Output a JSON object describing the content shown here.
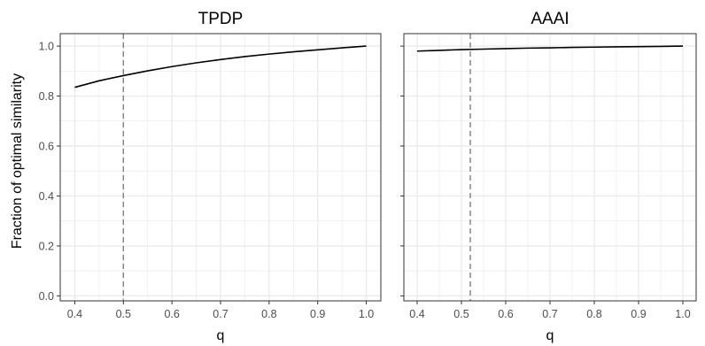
{
  "chart_data": {
    "type": "line",
    "ylabel": "Fraction of optimal similarity",
    "xlabel": "q",
    "ylim": [
      -0.02,
      1.05
    ],
    "xlim": [
      0.37,
      1.03
    ],
    "x_ticks": [
      "0.4",
      "0.5",
      "0.6",
      "0.7",
      "0.8",
      "0.9",
      "1.0"
    ],
    "y_ticks": [
      "0.0",
      "0.2",
      "0.4",
      "0.6",
      "0.8",
      "1.0"
    ],
    "grid": true,
    "panels": [
      {
        "title": "TPDP",
        "vline_x": 0.5,
        "x": [
          0.4,
          0.45,
          0.5,
          0.55,
          0.6,
          0.65,
          0.7,
          0.75,
          0.8,
          0.85,
          0.9,
          0.95,
          1.0
        ],
        "y": [
          0.835,
          0.861,
          0.882,
          0.901,
          0.918,
          0.933,
          0.946,
          0.958,
          0.968,
          0.977,
          0.985,
          0.993,
          1.0
        ]
      },
      {
        "title": "AAAI",
        "vline_x": 0.52,
        "x": [
          0.4,
          0.45,
          0.5,
          0.55,
          0.6,
          0.65,
          0.7,
          0.75,
          0.8,
          0.85,
          0.9,
          0.95,
          1.0
        ],
        "y": [
          0.98,
          0.983,
          0.986,
          0.988,
          0.99,
          0.992,
          0.993,
          0.995,
          0.996,
          0.997,
          0.998,
          0.999,
          1.0
        ]
      }
    ],
    "colors": {
      "line": "#000000",
      "vline": "#808080",
      "grid": "#ebebeb",
      "border": "#333333",
      "tick": "#4d4d4d"
    }
  }
}
